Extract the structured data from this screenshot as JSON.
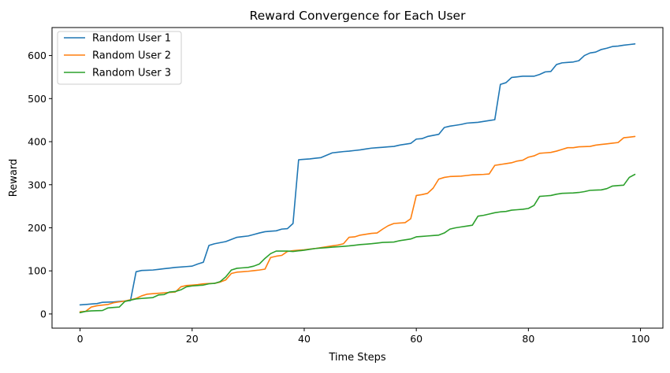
{
  "chart_data": {
    "type": "line",
    "title": "Reward Convergence for Each User",
    "xlabel": "Time Steps",
    "ylabel": "Reward",
    "xlim": [
      -5,
      104
    ],
    "ylim": [
      -33,
      665
    ],
    "x_ticks": [
      0,
      20,
      40,
      60,
      80,
      100
    ],
    "y_ticks": [
      0,
      100,
      200,
      300,
      400,
      500,
      600
    ],
    "grid": false,
    "legend_position": "top-left",
    "series": [
      {
        "name": "Random User 1",
        "color": "#1f77b4",
        "points": [
          [
            0,
            21
          ],
          [
            3,
            24
          ],
          [
            4,
            27
          ],
          [
            6,
            28
          ],
          [
            9,
            31
          ],
          [
            10,
            98
          ],
          [
            11,
            101
          ],
          [
            13,
            102
          ],
          [
            15,
            105
          ],
          [
            17,
            108
          ],
          [
            19,
            110
          ],
          [
            20,
            111
          ],
          [
            21,
            116
          ],
          [
            22,
            120
          ],
          [
            23,
            159
          ],
          [
            24,
            163
          ],
          [
            26,
            168
          ],
          [
            28,
            178
          ],
          [
            30,
            181
          ],
          [
            32,
            188
          ],
          [
            33,
            191
          ],
          [
            35,
            193
          ],
          [
            36,
            197
          ],
          [
            37,
            198
          ],
          [
            38,
            210
          ],
          [
            39,
            358
          ],
          [
            40,
            359
          ],
          [
            41,
            360
          ],
          [
            43,
            363
          ],
          [
            45,
            374
          ],
          [
            47,
            377
          ],
          [
            48,
            378
          ],
          [
            50,
            381
          ],
          [
            52,
            385
          ],
          [
            54,
            387
          ],
          [
            56,
            389
          ],
          [
            57,
            392
          ],
          [
            59,
            396
          ],
          [
            60,
            406
          ],
          [
            61,
            407
          ],
          [
            62,
            412
          ],
          [
            64,
            417
          ],
          [
            65,
            433
          ],
          [
            66,
            436
          ],
          [
            68,
            440
          ],
          [
            69,
            443
          ],
          [
            71,
            445
          ],
          [
            72,
            447
          ],
          [
            73,
            449
          ],
          [
            74,
            451
          ],
          [
            75,
            533
          ],
          [
            76,
            537
          ],
          [
            77,
            549
          ],
          [
            79,
            552
          ],
          [
            80,
            552
          ],
          [
            81,
            552
          ],
          [
            82,
            556
          ],
          [
            83,
            562
          ],
          [
            84,
            563
          ],
          [
            85,
            579
          ],
          [
            86,
            583
          ],
          [
            88,
            585
          ],
          [
            89,
            588
          ],
          [
            90,
            600
          ],
          [
            91,
            606
          ],
          [
            92,
            608
          ],
          [
            93,
            614
          ],
          [
            94,
            617
          ],
          [
            95,
            621
          ],
          [
            96,
            622
          ],
          [
            97,
            624
          ],
          [
            99,
            627
          ]
        ]
      },
      {
        "name": "Random User 2",
        "color": "#ff7f0e",
        "points": [
          [
            0,
            5
          ],
          [
            1,
            6
          ],
          [
            2,
            16
          ],
          [
            3,
            19
          ],
          [
            5,
            22
          ],
          [
            6,
            26
          ],
          [
            7,
            28
          ],
          [
            8,
            30
          ],
          [
            9,
            33
          ],
          [
            10,
            36
          ],
          [
            11,
            42
          ],
          [
            12,
            46
          ],
          [
            14,
            48
          ],
          [
            16,
            50
          ],
          [
            17,
            51
          ],
          [
            18,
            63
          ],
          [
            19,
            66
          ],
          [
            21,
            68
          ],
          [
            22,
            70
          ],
          [
            24,
            71
          ],
          [
            25,
            74
          ],
          [
            26,
            79
          ],
          [
            27,
            94
          ],
          [
            28,
            97
          ],
          [
            30,
            99
          ],
          [
            32,
            102
          ],
          [
            33,
            104
          ],
          [
            34,
            131
          ],
          [
            35,
            134
          ],
          [
            36,
            136
          ],
          [
            37,
            145
          ],
          [
            38,
            147
          ],
          [
            40,
            149
          ],
          [
            42,
            152
          ],
          [
            44,
            156
          ],
          [
            45,
            158
          ],
          [
            46,
            160
          ],
          [
            47,
            163
          ],
          [
            48,
            178
          ],
          [
            49,
            179
          ],
          [
            50,
            183
          ],
          [
            52,
            187
          ],
          [
            53,
            188
          ],
          [
            54,
            197
          ],
          [
            55,
            205
          ],
          [
            56,
            210
          ],
          [
            58,
            212
          ],
          [
            59,
            221
          ],
          [
            60,
            275
          ],
          [
            61,
            277
          ],
          [
            62,
            280
          ],
          [
            63,
            292
          ],
          [
            64,
            313
          ],
          [
            65,
            317
          ],
          [
            66,
            319
          ],
          [
            68,
            320
          ],
          [
            70,
            323
          ],
          [
            72,
            324
          ],
          [
            73,
            325
          ],
          [
            74,
            345
          ],
          [
            75,
            347
          ],
          [
            76,
            349
          ],
          [
            77,
            351
          ],
          [
            78,
            355
          ],
          [
            79,
            357
          ],
          [
            80,
            364
          ],
          [
            81,
            367
          ],
          [
            82,
            373
          ],
          [
            83,
            374
          ],
          [
            84,
            375
          ],
          [
            85,
            378
          ],
          [
            86,
            382
          ],
          [
            87,
            386
          ],
          [
            88,
            386
          ],
          [
            89,
            388
          ],
          [
            91,
            389
          ],
          [
            92,
            392
          ],
          [
            94,
            395
          ],
          [
            96,
            398
          ],
          [
            97,
            409
          ],
          [
            99,
            412
          ]
        ]
      },
      {
        "name": "Random User 3",
        "color": "#2ca02c",
        "points": [
          [
            0,
            3
          ],
          [
            1,
            6
          ],
          [
            2,
            7
          ],
          [
            4,
            8
          ],
          [
            5,
            14
          ],
          [
            6,
            15
          ],
          [
            7,
            16
          ],
          [
            8,
            29
          ],
          [
            9,
            32
          ],
          [
            10,
            35
          ],
          [
            11,
            36
          ],
          [
            12,
            37
          ],
          [
            13,
            38
          ],
          [
            14,
            44
          ],
          [
            15,
            45
          ],
          [
            16,
            51
          ],
          [
            17,
            52
          ],
          [
            18,
            56
          ],
          [
            19,
            63
          ],
          [
            20,
            65
          ],
          [
            21,
            66
          ],
          [
            22,
            67
          ],
          [
            23,
            70
          ],
          [
            24,
            71
          ],
          [
            25,
            75
          ],
          [
            26,
            86
          ],
          [
            27,
            102
          ],
          [
            28,
            106
          ],
          [
            30,
            108
          ],
          [
            31,
            111
          ],
          [
            32,
            116
          ],
          [
            33,
            129
          ],
          [
            34,
            140
          ],
          [
            35,
            146
          ],
          [
            37,
            146
          ],
          [
            38,
            145
          ],
          [
            40,
            148
          ],
          [
            41,
            150
          ],
          [
            42,
            152
          ],
          [
            44,
            154
          ],
          [
            46,
            156
          ],
          [
            48,
            158
          ],
          [
            50,
            161
          ],
          [
            52,
            163
          ],
          [
            54,
            166
          ],
          [
            56,
            167
          ],
          [
            57,
            170
          ],
          [
            59,
            174
          ],
          [
            60,
            179
          ],
          [
            61,
            180
          ],
          [
            62,
            181
          ],
          [
            64,
            183
          ],
          [
            65,
            188
          ],
          [
            66,
            197
          ],
          [
            67,
            200
          ],
          [
            68,
            202
          ],
          [
            69,
            204
          ],
          [
            70,
            206
          ],
          [
            71,
            227
          ],
          [
            72,
            229
          ],
          [
            73,
            232
          ],
          [
            74,
            235
          ],
          [
            75,
            237
          ],
          [
            76,
            238
          ],
          [
            77,
            241
          ],
          [
            79,
            243
          ],
          [
            80,
            245
          ],
          [
            81,
            252
          ],
          [
            82,
            273
          ],
          [
            84,
            275
          ],
          [
            85,
            278
          ],
          [
            86,
            280
          ],
          [
            88,
            281
          ],
          [
            89,
            282
          ],
          [
            90,
            284
          ],
          [
            91,
            287
          ],
          [
            93,
            288
          ],
          [
            94,
            291
          ],
          [
            95,
            297
          ],
          [
            97,
            299
          ],
          [
            98,
            317
          ],
          [
            99,
            324
          ]
        ]
      }
    ]
  }
}
